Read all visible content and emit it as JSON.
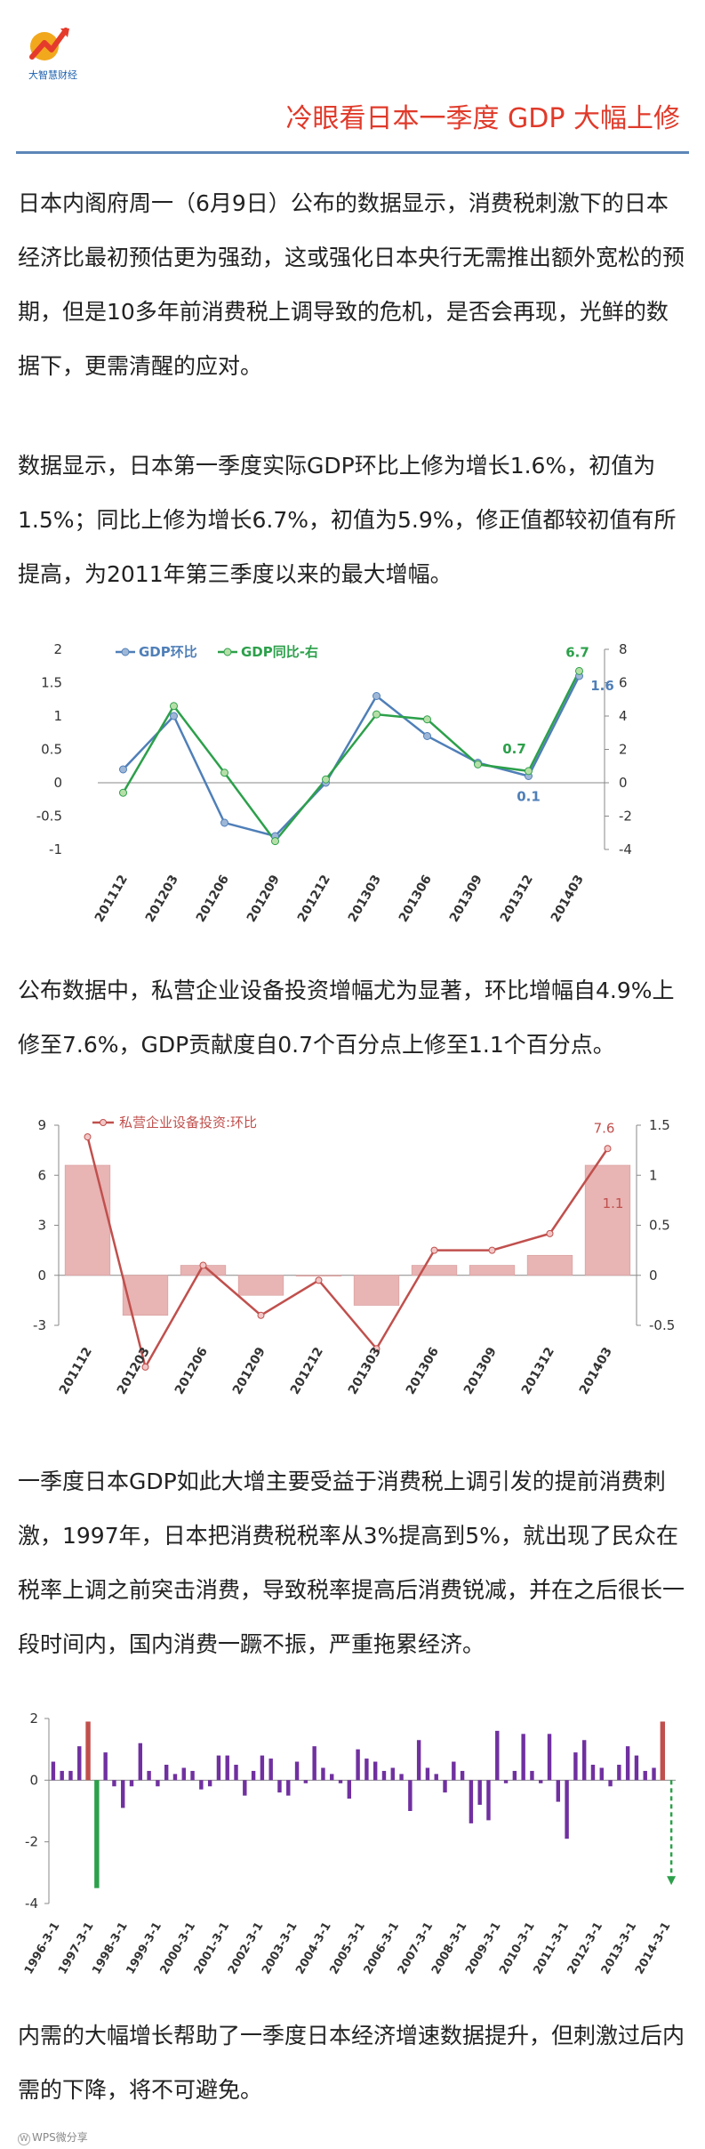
{
  "header": {
    "brand": "大智慧财经",
    "title": "冷眼看日本一季度 GDP 大幅上修"
  },
  "paragraphs": [
    "日本内阁府周一（6月9日）公布的数据显示，消费税刺激下的日本经济比最初预估更为强劲，这或强化日本央行无需推出额外宽松的预期，但是10多年前消费税上调导致的危机，是否会再现，光鲜的数据下，更需清醒的应对。",
    "数据显示，日本第一季度实际GDP环比上修为增长1.6%，初值为1.5%；同比上修为增长6.7%，初值为5.9%，修正值都较初值有所提高，为2011年第三季度以来的最大增幅。",
    "公布数据中，私营企业设备投资增幅尤为显著，环比增幅自4.9%上修至7.6%，GDP贡献度自0.7个百分点上修至1.1个百分点。",
    "一季度日本GDP如此大增主要受益于消费税上调引发的提前消费刺激，1997年，日本把消费税税率从3%提高到5%，就出现了民众在税率上调之前突击消费，导致税率提高后消费锐减，并在之后很长一段时间内，国内消费一蹶不振，严重拖累经济。",
    "内需的大幅增长帮助了一季度日本经济增速数据提升，但刺激过后内需的下降，将不可避免。"
  ],
  "footer": "WPS微分享",
  "colors": {
    "blue": "#4f7fb8",
    "green": "#2ca04a",
    "red": "#c0504d",
    "bar": "#e8b4b4",
    "purple": "#7030a0",
    "gray": "#9a9a9a"
  },
  "chart_data": [
    {
      "type": "line",
      "categories": [
        "201112",
        "201203",
        "201206",
        "201209",
        "201212",
        "201303",
        "201306",
        "201309",
        "201312",
        "201403"
      ],
      "series": [
        {
          "name": "GDP环比",
          "axis": "left",
          "values": [
            0.2,
            1.0,
            -0.6,
            -0.8,
            0.0,
            1.3,
            0.7,
            0.3,
            0.1,
            1.6
          ]
        },
        {
          "name": "GDP同比-右",
          "axis": "right",
          "values": [
            -0.6,
            4.6,
            0.6,
            -3.5,
            0.2,
            4.1,
            3.8,
            1.1,
            0.7,
            6.7
          ]
        }
      ],
      "annotations": [
        "6.7",
        "1.6",
        "0.7",
        "0.1"
      ],
      "y_left_ticks": [
        "2",
        "1.5",
        "1",
        "0.5",
        "0",
        "-0.5",
        "-1"
      ],
      "y_right_ticks": [
        "8",
        "6",
        "4",
        "2",
        "0",
        "-2",
        "-4"
      ],
      "ylim_left": [
        -1,
        2
      ],
      "ylim_right": [
        -4,
        8
      ]
    },
    {
      "type": "bar",
      "categories": [
        "201112",
        "201203",
        "201206",
        "201209",
        "201212",
        "201303",
        "201306",
        "201309",
        "201312",
        "201403"
      ],
      "series": [
        {
          "name": "私营企业设备投资:环比",
          "kind": "line",
          "axis": "left",
          "values": [
            8.3,
            -5.5,
            0.6,
            -2.4,
            -0.3,
            -4.4,
            1.5,
            1.5,
            2.5,
            7.6
          ]
        },
        {
          "name": "",
          "kind": "bar",
          "axis": "right",
          "values": [
            1.1,
            -0.4,
            0.1,
            -0.2,
            0.0,
            -0.3,
            0.1,
            0.1,
            0.2,
            1.1
          ]
        }
      ],
      "annotations": [
        "7.6",
        "1.1"
      ],
      "y_left_ticks": [
        "9",
        "6",
        "3",
        "0",
        "-3"
      ],
      "y_right_ticks": [
        "1.5",
        "1",
        "0.5",
        "0",
        "-0.5"
      ],
      "ylim_left": [
        -3,
        9
      ],
      "ylim_right": [
        -0.5,
        1.5
      ]
    },
    {
      "type": "bar",
      "x_ticks": [
        "1996-3-1",
        "1997-3-1",
        "1998-3-1",
        "1999-3-1",
        "2000-3-1",
        "2001-3-1",
        "2002-3-1",
        "2003-3-1",
        "2004-3-1",
        "2005-3-1",
        "2006-3-1",
        "2007-3-1",
        "2008-3-1",
        "2009-3-1",
        "2010-3-1",
        "2011-3-1",
        "2012-3-1",
        "2013-3-1",
        "2014-3-1"
      ],
      "values": [
        0.6,
        0.3,
        0.3,
        1.1,
        1.9,
        -3.5,
        0.9,
        -0.2,
        -0.9,
        -0.2,
        1.2,
        0.3,
        -0.2,
        0.5,
        0.2,
        0.4,
        0.3,
        -0.3,
        -0.2,
        0.8,
        0.8,
        0.5,
        -0.5,
        0.3,
        0.8,
        0.7,
        -0.4,
        -0.5,
        0.6,
        -0.1,
        1.1,
        0.4,
        0.2,
        -0.1,
        -0.6,
        1.0,
        0.7,
        0.6,
        0.3,
        0.4,
        0.2,
        -1.0,
        1.3,
        0.4,
        0.2,
        -0.4,
        0.6,
        0.3,
        -1.4,
        -0.8,
        -1.3,
        1.6,
        -0.1,
        0.3,
        1.5,
        0.3,
        -0.1,
        1.5,
        -0.7,
        -1.9,
        0.9,
        1.3,
        0.5,
        0.4,
        -0.2,
        0.5,
        1.1,
        0.8,
        0.3,
        0.4,
        1.9,
        -3.4
      ],
      "highlight": {
        "1997 pre-hike": 1.9,
        "1997 post-hike": -3.5,
        "2014 pre-hike": 1.9,
        "2014 projected": -3.4
      },
      "y_ticks": [
        "2",
        "0",
        "-2",
        "-4"
      ],
      "ylim": [
        -4,
        2
      ]
    }
  ]
}
